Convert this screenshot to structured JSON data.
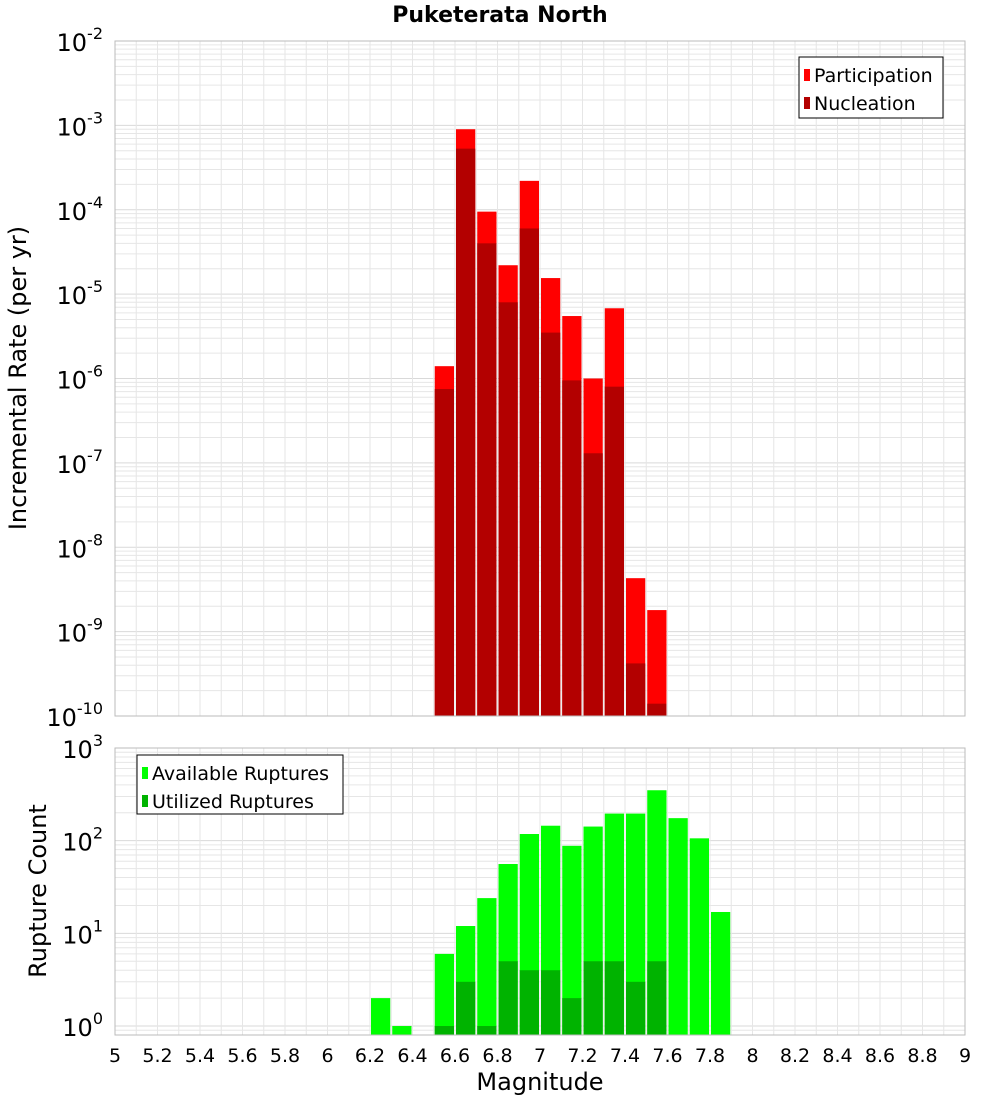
{
  "title": "Puketerata North",
  "xlabel": "Magnitude",
  "x_ticks": [
    "5",
    "5.2",
    "5.4",
    "5.6",
    "5.8",
    "6",
    "6.2",
    "6.4",
    "6.6",
    "6.8",
    "7",
    "7.2",
    "7.4",
    "7.6",
    "7.8",
    "8",
    "8.2",
    "8.4",
    "8.6",
    "8.8",
    "9"
  ],
  "top_panel": {
    "ylabel": "Incremental Rate (per yr)",
    "legend": [
      "Participation",
      "Nucleation"
    ],
    "y_tick_base": "10",
    "y_tick_exponents": [
      "-10",
      "-9",
      "-8",
      "-7",
      "-6",
      "-5",
      "-4",
      "-3",
      "-2"
    ]
  },
  "bottom_panel": {
    "ylabel": "Rupture Count",
    "legend": [
      "Available Ruptures",
      "Utilized Ruptures"
    ],
    "y_tick_base": "10",
    "y_tick_exponents": [
      "0",
      "1",
      "2",
      "3"
    ]
  },
  "colors": {
    "participation": "#ff0000",
    "nucleation": "#b30000",
    "available": "#00ff00",
    "utilized": "#00b300",
    "grid": "#e6e6e6",
    "frame": "#bbbbbb"
  },
  "chart_data": [
    {
      "type": "bar",
      "title": "Puketerata North",
      "xlabel": "Magnitude",
      "ylabel": "Incremental Rate (per yr)",
      "y_scale": "log",
      "xlim": [
        5,
        9
      ],
      "ylim": [
        1e-10,
        0.01
      ],
      "grid": true,
      "legend_position": "top-right",
      "x": [
        6.55,
        6.65,
        6.75,
        6.85,
        6.95,
        7.05,
        7.15,
        7.25,
        7.35,
        7.45,
        7.55
      ],
      "series": [
        {
          "name": "Participation",
          "values": [
            1.4e-06,
            0.0009,
            9.5e-05,
            2.2e-05,
            0.00022,
            1.55e-05,
            5.5e-06,
            1e-06,
            6.8e-06,
            4.3e-09,
            1.8e-09
          ]
        },
        {
          "name": "Nucleation",
          "values": [
            7.5e-07,
            0.00053,
            4e-05,
            8e-06,
            6e-05,
            3.5e-06,
            9.5e-07,
            1.3e-07,
            8e-07,
            4.2e-10,
            1.4e-10
          ]
        }
      ]
    },
    {
      "type": "bar",
      "xlabel": "Magnitude",
      "ylabel": "Rupture Count",
      "y_scale": "log",
      "xlim": [
        5,
        9
      ],
      "ylim": [
        0.8,
        1000
      ],
      "grid": true,
      "legend_position": "top-left",
      "x": [
        6.25,
        6.35,
        6.45,
        6.55,
        6.65,
        6.75,
        6.85,
        6.95,
        7.05,
        7.15,
        7.25,
        7.35,
        7.45,
        7.55,
        7.65,
        7.75,
        7.85
      ],
      "series": [
        {
          "name": "Available Ruptures",
          "values": [
            2,
            1,
            0,
            6,
            12,
            24,
            56,
            118,
            145,
            88,
            142,
            196,
            196,
            350,
            175,
            106,
            17
          ]
        },
        {
          "name": "Utilized Ruptures",
          "values": [
            0,
            0,
            0,
            1,
            3,
            1,
            5,
            4,
            4,
            2,
            5,
            5,
            3,
            5,
            0,
            0,
            0
          ]
        }
      ]
    }
  ]
}
